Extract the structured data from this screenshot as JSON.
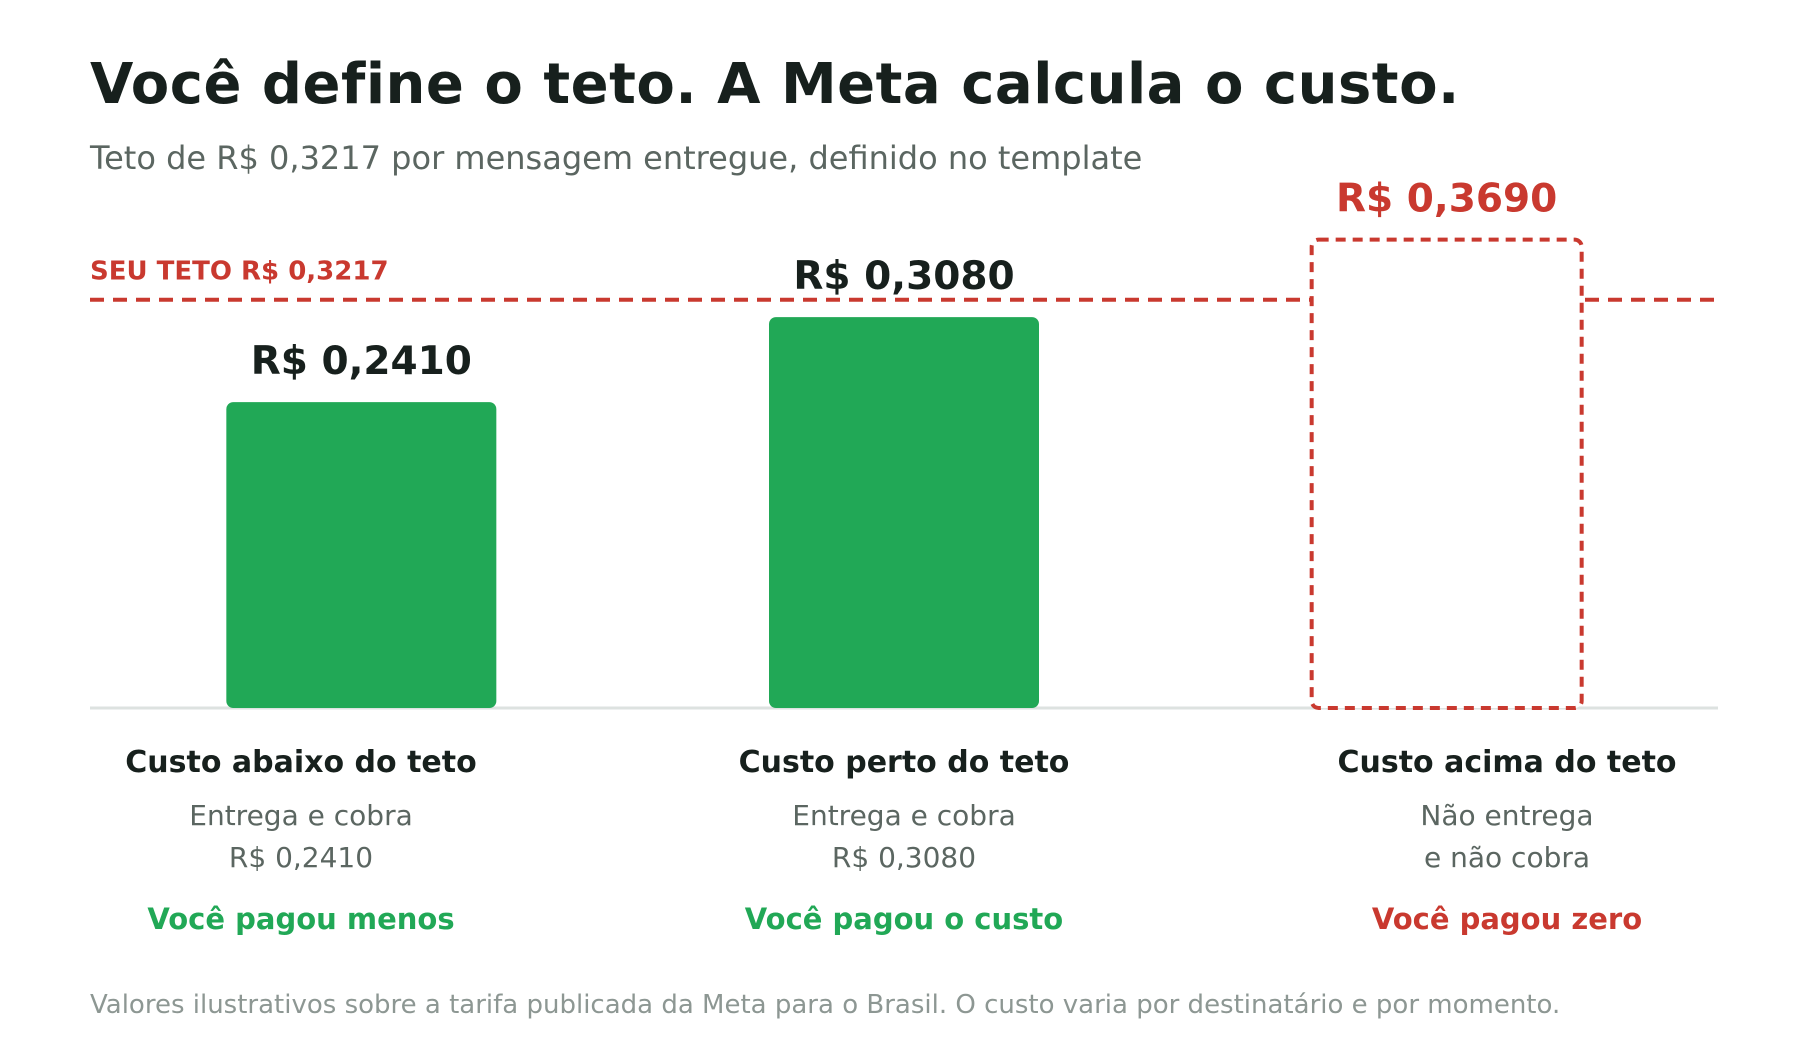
{
  "colors": {
    "accent_green": "#21a856",
    "accent_red": "#c9392f",
    "text_dark": "#17201d",
    "text_muted": "#5b6661",
    "footnote": "#8d9793",
    "baseline": "#dde2e0"
  },
  "header": {
    "title": "Você define o teto. A Meta calcula o custo.",
    "subtitle": "Teto de R$ 0,3217 por mensagem entregue, definido no template"
  },
  "chart_data": {
    "type": "bar",
    "categories": [
      "Custo abaixo do teto",
      "Custo perto do teto",
      "Custo acima do teto"
    ],
    "values": [
      0.241,
      0.308,
      0.369
    ],
    "value_labels": [
      "R$ 0,2410",
      "R$ 0,3080",
      "R$ 0,3690"
    ],
    "bar_styles": [
      "filled",
      "filled",
      "dashed-outline"
    ],
    "bar_colors": [
      "#21a856",
      "#21a856",
      "#c9392f"
    ],
    "threshold": {
      "value": 0.3217,
      "label": "SEU TETO R$ 0,3217",
      "color": "#c9392f",
      "style": "dashed"
    },
    "ylim": [
      0,
      0.3845
    ],
    "grid": false,
    "legend": "none"
  },
  "categories_info": [
    {
      "title": "Custo abaixo do teto",
      "desc_lines": [
        "Entrega e cobra",
        "R$ 0,2410"
      ],
      "result": "Você pagou menos",
      "result_color": "#21a856"
    },
    {
      "title": "Custo perto do teto",
      "desc_lines": [
        "Entrega e cobra",
        "R$ 0,3080"
      ],
      "result": "Você pagou o custo",
      "result_color": "#21a856"
    },
    {
      "title": "Custo acima do teto",
      "desc_lines": [
        "Não entrega",
        "e não cobra"
      ],
      "result": "Você pagou zero",
      "result_color": "#c9392f"
    }
  ],
  "footnote": "Valores ilustrativos sobre a tarifa publicada da Meta para o Brasil. O custo varia por destinatário e por momento."
}
